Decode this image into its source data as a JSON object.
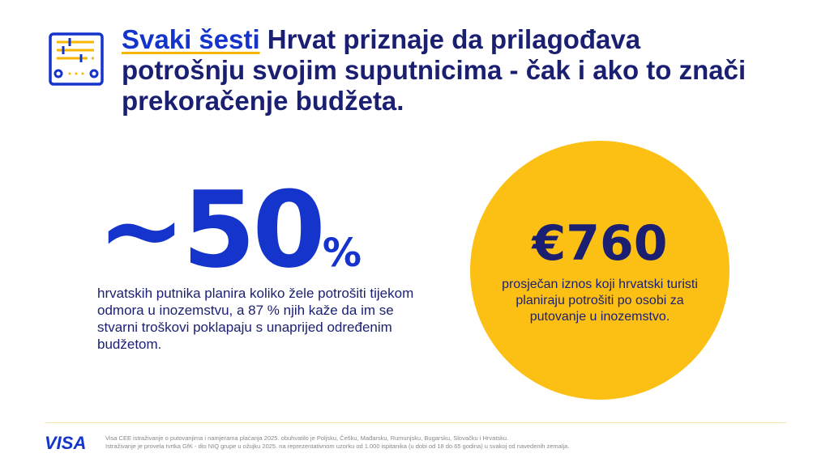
{
  "title": {
    "highlight": "Svaki šesti",
    "rest": " Hrvat priznaje da prilagođava potrošnju svojim suputnicima - čak i ako to znači prekoračenje budžeta."
  },
  "stat_left": {
    "value": "~50",
    "unit": "%",
    "description": "hrvatskih putnika planira koliko žele potrošiti tijekom odmora u inozemstvu, a 87 % njih kaže da im se stvarni troškovi poklapaju s unaprijed određenim budžetom."
  },
  "stat_right": {
    "value": "€760",
    "description": "prosječan iznos koji hrvatski turisti planiraju potrošiti po osobi za putovanje u inozemstvo."
  },
  "footer": {
    "logo": "VISA",
    "line1": "Visa CEE istraživanje o putovanjima i namjerama plaćanja 2025. obuhvatilo je Poljsku, Češku, Mađarsku, Rumunjsku, Bugarsku, Slovačku i Hrvatsku.",
    "line2": "Istraživanje je provela tvrtka GfK - dio NIQ grupe u ožujku 2025. na reprezentativnom uzorku od 1.000 ispitanika (u dobi od 18 do 65 godina) u svakoj od navedenih zemalja."
  },
  "colors": {
    "navy": "#1a1f71",
    "blue": "#1434cb",
    "yellow": "#fcc015"
  }
}
